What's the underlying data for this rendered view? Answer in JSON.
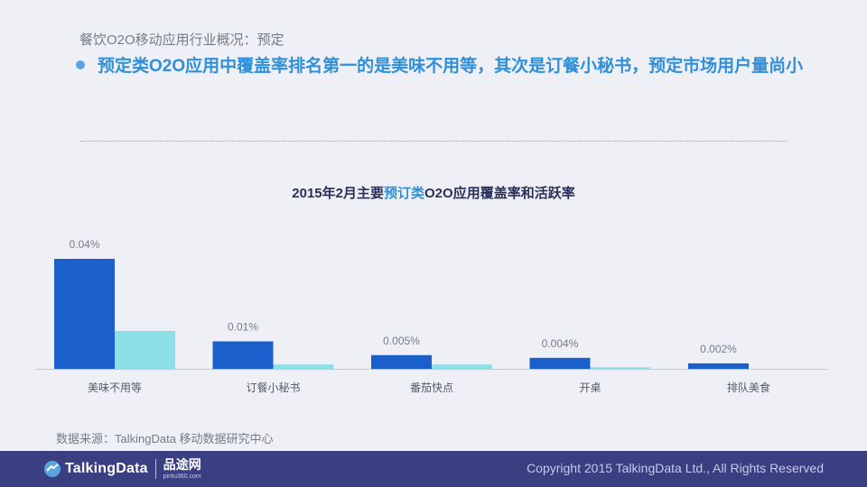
{
  "header": {
    "subtitle": "餐饮O2O移动应用行业概况：预定",
    "headline": "预定类O2O应用中覆盖率排名第一的是美味不用等，其次是订餐小秘书，预定市场用户量尚小"
  },
  "chart_data": {
    "type": "bar",
    "title_parts": [
      "2015年2月主要",
      "预订类",
      "O2O应用覆盖率和活跃率"
    ],
    "categories": [
      "美味不用等",
      "订餐小秘书",
      "番茄快点",
      "开桌",
      "排队美食"
    ],
    "series": [
      {
        "values": [
          0.04,
          0.01,
          0.005,
          0.004,
          0.002
        ],
        "labels": [
          "0.04%",
          "0.01%",
          "0.005%",
          "0.004%",
          "0.002%"
        ],
        "color": "#1a5fcc"
      },
      {
        "values": [
          0.0138,
          0.0016,
          0.0016,
          0.0006,
          0.0
        ],
        "color": "#8ee0e8"
      }
    ],
    "ylim": [
      0,
      0.04
    ],
    "legend": "none",
    "grid": false
  },
  "source": "数据来源：TalkingData 移动数据研究中心",
  "footer": {
    "logo_icon": "talkingdata-logo-icon",
    "logo_text": "TalkingData",
    "partner_name": "品途网",
    "partner_url": "pintu360.com",
    "copyright": "Copyright 2015 TalkingData Ltd., All Rights Reserved"
  },
  "colors": {
    "accent": "#2f8fd8",
    "footer": "#3a3f82",
    "bar_primary": "#1a5fcc",
    "bar_secondary": "#8ee0e8"
  }
}
